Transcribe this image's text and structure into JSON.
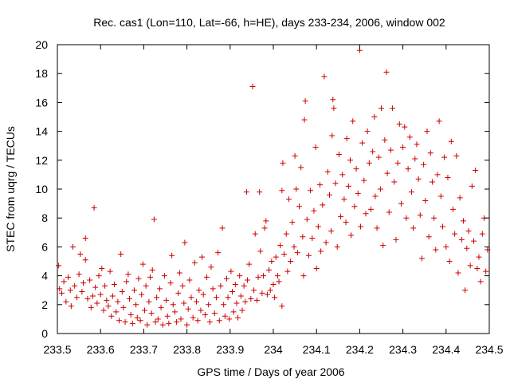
{
  "chart_data": {
    "type": "scatter",
    "title": "Rec. cas1 (Lon=110, Lat=-66, h=HE), days 233-234, 2006, window 002",
    "xlabel": "GPS time / Days of year 2006",
    "ylabel": "STEC from uqrg / TECUs",
    "xlim": [
      233.5,
      234.5
    ],
    "ylim": [
      0,
      20
    ],
    "xticks": [
      "233.5",
      "233.6",
      "233.7",
      "233.8",
      "233.9",
      "234",
      "234.1",
      "234.2",
      "234.3",
      "234.4",
      "234.5"
    ],
    "yticks": [
      "0",
      "2",
      "4",
      "6",
      "8",
      "10",
      "12",
      "14",
      "16",
      "18",
      "20"
    ],
    "grid": false,
    "legend": "none",
    "marker": "plus",
    "color": "#cc0000",
    "series": [
      {
        "points": [
          [
            233.503,
            4.7
          ],
          [
            233.505,
            3.1
          ],
          [
            233.51,
            2.8
          ],
          [
            233.515,
            3.6
          ],
          [
            233.52,
            2.2
          ],
          [
            233.525,
            3.9
          ],
          [
            233.53,
            3.0
          ],
          [
            233.532,
            1.9
          ],
          [
            233.536,
            6.0
          ],
          [
            233.54,
            3.3
          ],
          [
            233.545,
            2.5
          ],
          [
            233.55,
            4.1
          ],
          [
            233.553,
            5.5
          ],
          [
            233.557,
            2.9
          ],
          [
            233.56,
            3.5
          ],
          [
            233.565,
            6.6
          ],
          [
            233.565,
            5.1
          ],
          [
            233.57,
            2.4
          ],
          [
            233.575,
            3.7
          ],
          [
            233.578,
            1.8
          ],
          [
            233.582,
            2.6
          ],
          [
            233.585,
            8.7
          ],
          [
            233.588,
            3.2
          ],
          [
            233.592,
            2.1
          ],
          [
            233.596,
            4.0
          ],
          [
            233.6,
            2.7
          ],
          [
            233.603,
            4.5
          ],
          [
            233.607,
            1.6
          ],
          [
            233.61,
            3.3
          ],
          [
            233.614,
            2.3
          ],
          [
            233.618,
            1.9
          ],
          [
            233.622,
            4.3
          ],
          [
            233.625,
            1.2
          ],
          [
            233.628,
            2.6
          ],
          [
            233.632,
            3.4
          ],
          [
            233.636,
            1.5
          ],
          [
            233.64,
            2.2
          ],
          [
            233.643,
            0.9
          ],
          [
            233.647,
            5.5
          ],
          [
            233.65,
            2.9
          ],
          [
            233.653,
            1.8
          ],
          [
            233.657,
            0.8
          ],
          [
            233.66,
            3.6
          ],
          [
            233.664,
            4.1
          ],
          [
            233.667,
            2.4
          ],
          [
            233.67,
            1.3
          ],
          [
            233.674,
            0.7
          ],
          [
            233.678,
            3.0
          ],
          [
            233.682,
            2.0
          ],
          [
            233.685,
            1.1
          ],
          [
            233.688,
            3.8
          ],
          [
            233.692,
            0.9
          ],
          [
            233.695,
            2.7
          ],
          [
            233.698,
            4.8
          ],
          [
            233.702,
            1.6
          ],
          [
            233.705,
            3.3
          ],
          [
            233.708,
            0.6
          ],
          [
            233.712,
            2.2
          ],
          [
            233.715,
            3.9
          ],
          [
            233.718,
            1.4
          ],
          [
            233.72,
            4.4
          ],
          [
            233.724,
            7.9
          ],
          [
            233.727,
            0.8
          ],
          [
            233.73,
            2.5
          ],
          [
            233.733,
            1.0
          ],
          [
            233.737,
            3.1
          ],
          [
            233.74,
            1.8
          ],
          [
            233.744,
            0.6
          ],
          [
            233.748,
            4.0
          ],
          [
            233.752,
            2.3
          ],
          [
            233.755,
            1.2
          ],
          [
            233.758,
            0.7
          ],
          [
            233.762,
            3.5
          ],
          [
            233.765,
            5.4
          ],
          [
            233.768,
            2.0
          ],
          [
            233.772,
            1.5
          ],
          [
            233.776,
            0.8
          ],
          [
            233.78,
            2.8
          ],
          [
            233.783,
            4.2
          ],
          [
            233.786,
            1.0
          ],
          [
            233.79,
            3.3
          ],
          [
            233.793,
            2.1
          ],
          [
            233.795,
            6.3
          ],
          [
            233.8,
            0.6
          ],
          [
            233.803,
            1.7
          ],
          [
            233.806,
            3.7
          ],
          [
            233.81,
            2.5
          ],
          [
            233.814,
            1.1
          ],
          [
            233.818,
            4.9
          ],
          [
            233.822,
            2.2
          ],
          [
            233.825,
            0.9
          ],
          [
            233.828,
            3.0
          ],
          [
            233.832,
            1.6
          ],
          [
            233.835,
            5.3
          ],
          [
            233.838,
            2.7
          ],
          [
            233.842,
            1.3
          ],
          [
            233.846,
            3.9
          ],
          [
            233.85,
            2.0
          ],
          [
            233.853,
            0.8
          ],
          [
            233.856,
            4.6
          ],
          [
            233.86,
            3.1
          ],
          [
            233.864,
            1.4
          ],
          [
            233.868,
            2.5
          ],
          [
            233.872,
            5.6
          ],
          [
            233.875,
            0.9
          ],
          [
            233.878,
            3.3
          ],
          [
            233.882,
            7.3
          ],
          [
            233.885,
            2.0
          ],
          [
            233.888,
            1.2
          ],
          [
            233.892,
            3.8
          ],
          [
            233.895,
            2.5
          ],
          [
            233.898,
            1.0
          ],
          [
            233.902,
            4.3
          ],
          [
            233.905,
            2.9
          ],
          [
            233.908,
            1.5
          ],
          [
            233.912,
            3.4
          ],
          [
            233.915,
            2.1
          ],
          [
            233.918,
            1.1
          ],
          [
            233.922,
            4.0
          ],
          [
            233.925,
            2.6
          ],
          [
            233.928,
            1.6
          ],
          [
            233.932,
            3.3
          ],
          [
            233.935,
            2.2
          ],
          [
            233.938,
            9.8
          ],
          [
            233.94,
            3.7
          ],
          [
            233.944,
            4.8
          ],
          [
            233.948,
            2.4
          ],
          [
            233.952,
            17.1
          ],
          [
            233.955,
            3.0
          ],
          [
            233.958,
            6.9
          ],
          [
            233.962,
            2.3
          ],
          [
            233.965,
            3.9
          ],
          [
            233.968,
            9.8
          ],
          [
            233.97,
            5.7
          ],
          [
            233.974,
            2.8
          ],
          [
            233.977,
            4.0
          ],
          [
            233.98,
            7.3
          ],
          [
            233.983,
            7.8
          ],
          [
            233.986,
            2.7
          ],
          [
            233.99,
            4.4
          ],
          [
            233.993,
            3.0
          ],
          [
            233.996,
            5.0
          ],
          [
            234.0,
            3.4
          ],
          [
            234.003,
            2.5
          ],
          [
            234.006,
            5.3
          ],
          [
            234.01,
            4.0
          ],
          [
            234.013,
            3.6
          ],
          [
            234.016,
            6.1
          ],
          [
            234.02,
            1.9
          ],
          [
            234.02,
            9.9
          ],
          [
            234.022,
            11.8
          ],
          [
            234.025,
            5.5
          ],
          [
            234.03,
            6.9
          ],
          [
            234.033,
            4.3
          ],
          [
            234.036,
            9.3
          ],
          [
            234.04,
            5.0
          ],
          [
            234.044,
            7.7
          ],
          [
            234.048,
            6.0
          ],
          [
            234.05,
            12.3
          ],
          [
            234.053,
            10.0
          ],
          [
            234.056,
            5.6
          ],
          [
            234.06,
            8.8
          ],
          [
            234.064,
            11.5
          ],
          [
            234.068,
            6.7
          ],
          [
            234.07,
            4.0
          ],
          [
            234.072,
            14.8
          ],
          [
            234.074,
            16.1
          ],
          [
            234.078,
            7.9
          ],
          [
            234.082,
            5.4
          ],
          [
            234.086,
            9.9
          ],
          [
            234.09,
            6.6
          ],
          [
            234.094,
            8.5
          ],
          [
            234.098,
            12.9
          ],
          [
            234.1,
            4.5
          ],
          [
            234.104,
            7.4
          ],
          [
            234.108,
            10.3
          ],
          [
            234.11,
            5.7
          ],
          [
            234.114,
            8.9
          ],
          [
            234.118,
            17.8
          ],
          [
            234.122,
            6.3
          ],
          [
            234.126,
            11.2
          ],
          [
            234.13,
            9.6
          ],
          [
            234.134,
            7.1
          ],
          [
            234.136,
            13.7
          ],
          [
            234.138,
            16.2
          ],
          [
            234.14,
            15.6
          ],
          [
            234.144,
            10.4
          ],
          [
            234.148,
            6.0
          ],
          [
            234.152,
            12.4
          ],
          [
            234.156,
            8.1
          ],
          [
            234.16,
            11.0
          ],
          [
            234.164,
            9.3
          ],
          [
            234.168,
            7.7
          ],
          [
            234.17,
            13.5
          ],
          [
            234.174,
            10.2
          ],
          [
            234.178,
            12.0
          ],
          [
            234.18,
            6.8
          ],
          [
            234.184,
            14.7
          ],
          [
            234.188,
            8.8
          ],
          [
            234.192,
            11.4
          ],
          [
            234.196,
            9.7
          ],
          [
            234.2,
            19.6
          ],
          [
            234.202,
            7.4
          ],
          [
            234.206,
            13.2
          ],
          [
            234.21,
            10.6
          ],
          [
            234.214,
            8.3
          ],
          [
            234.218,
            14.0
          ],
          [
            234.222,
            11.8
          ],
          [
            234.226,
            8.6
          ],
          [
            234.23,
            12.6
          ],
          [
            234.234,
            15.0
          ],
          [
            234.236,
            9.5
          ],
          [
            234.24,
            7.3
          ],
          [
            234.244,
            12.2
          ],
          [
            234.248,
            10.0
          ],
          [
            234.25,
            15.6
          ],
          [
            234.254,
            6.1
          ],
          [
            234.258,
            13.4
          ],
          [
            234.262,
            18.1
          ],
          [
            234.264,
            11.1
          ],
          [
            234.268,
            8.4
          ],
          [
            234.272,
            12.7
          ],
          [
            234.276,
            15.6
          ],
          [
            234.28,
            10.5
          ],
          [
            234.284,
            6.5
          ],
          [
            234.288,
            11.8
          ],
          [
            234.292,
            14.5
          ],
          [
            234.296,
            9.0
          ],
          [
            234.3,
            12.9
          ],
          [
            234.304,
            14.3
          ],
          [
            234.308,
            8.0
          ],
          [
            234.312,
            11.4
          ],
          [
            234.316,
            13.6
          ],
          [
            234.32,
            9.8
          ],
          [
            234.324,
            7.3
          ],
          [
            234.328,
            12.1
          ],
          [
            234.332,
            13.1
          ],
          [
            234.336,
            10.7
          ],
          [
            234.34,
            8.2
          ],
          [
            234.344,
            5.2
          ],
          [
            234.348,
            11.7
          ],
          [
            234.352,
            9.2
          ],
          [
            234.356,
            14.0
          ],
          [
            234.36,
            6.7
          ],
          [
            234.364,
            12.5
          ],
          [
            234.368,
            10.5
          ],
          [
            234.372,
            8.0
          ],
          [
            234.376,
            5.8
          ],
          [
            234.38,
            11.0
          ],
          [
            234.384,
            14.7
          ],
          [
            234.388,
            9.5
          ],
          [
            234.392,
            7.4
          ],
          [
            234.396,
            12.2
          ],
          [
            234.4,
            6.0
          ],
          [
            234.404,
            10.8
          ],
          [
            234.408,
            5.0
          ],
          [
            234.412,
            13.3
          ],
          [
            234.416,
            8.6
          ],
          [
            234.42,
            6.9
          ],
          [
            234.424,
            12.3
          ],
          [
            234.428,
            4.2
          ],
          [
            234.432,
            9.4
          ],
          [
            234.436,
            6.5
          ],
          [
            234.44,
            7.8
          ],
          [
            234.444,
            3.0
          ],
          [
            234.448,
            5.9
          ],
          [
            234.452,
            7.1
          ],
          [
            234.456,
            4.7
          ],
          [
            234.46,
            10.2
          ],
          [
            234.464,
            6.4
          ],
          [
            234.468,
            11.3
          ],
          [
            234.472,
            4.5
          ],
          [
            234.476,
            5.3
          ],
          [
            234.48,
            3.6
          ],
          [
            234.484,
            6.9
          ],
          [
            234.488,
            8.0
          ],
          [
            234.492,
            4.3
          ],
          [
            234.496,
            5.8
          ]
        ]
      }
    ]
  }
}
